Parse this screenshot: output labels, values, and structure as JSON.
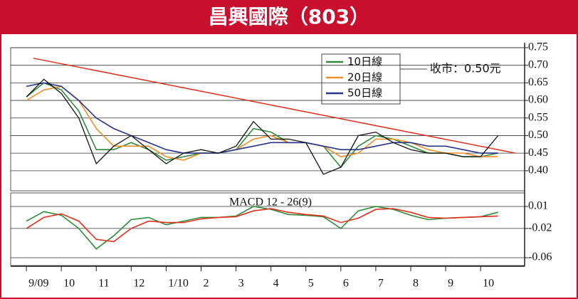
{
  "header": {
    "title": "昌興國際（803）"
  },
  "chart_data": [
    {
      "type": "line",
      "x": [
        0,
        0.5,
        1,
        1.5,
        2,
        2.5,
        3,
        3.5,
        4,
        4.5,
        5,
        5.5,
        6,
        6.5,
        7,
        7.5,
        8,
        8.5,
        9,
        9.5,
        10,
        10.5,
        11,
        11.5,
        12,
        12.5,
        13,
        13.5
      ],
      "values": [
        0.61,
        0.66,
        0.62,
        0.55,
        0.42,
        0.47,
        0.5,
        0.46,
        0.42,
        0.45,
        0.46,
        0.45,
        0.47,
        0.54,
        0.49,
        0.49,
        0.48,
        0.39,
        0.41,
        0.5,
        0.51,
        0.48,
        0.46,
        0.45,
        0.45,
        0.44,
        0.44,
        0.5
      ],
      "color": "#111111",
      "series": [
        {
          "name": "10日線",
          "color": "#2e8b3a",
          "values": [
            0.61,
            0.65,
            0.63,
            0.57,
            0.46,
            0.46,
            0.48,
            0.46,
            0.43,
            0.44,
            0.45,
            0.45,
            0.46,
            0.52,
            0.51,
            0.48,
            0.48,
            0.47,
            0.41,
            0.47,
            0.5,
            0.49,
            0.47,
            0.45,
            0.45,
            0.44,
            0.44,
            0.45
          ]
        },
        {
          "name": "20日線",
          "color": "#f0902a",
          "values": [
            0.6,
            0.63,
            0.64,
            0.6,
            0.52,
            0.47,
            0.47,
            0.47,
            0.44,
            0.43,
            0.45,
            0.45,
            0.46,
            0.49,
            0.5,
            0.48,
            0.48,
            0.47,
            0.44,
            0.45,
            0.49,
            0.49,
            0.48,
            0.46,
            0.45,
            0.45,
            0.44,
            0.44
          ]
        },
        {
          "name": "50日線",
          "color": "#28348a",
          "values": [
            0.64,
            0.65,
            0.64,
            0.6,
            0.55,
            0.52,
            0.5,
            0.48,
            0.46,
            0.45,
            0.45,
            0.45,
            0.46,
            0.47,
            0.48,
            0.48,
            0.48,
            0.47,
            0.46,
            0.46,
            0.47,
            0.48,
            0.48,
            0.47,
            0.47,
            0.46,
            0.45,
            0.45
          ]
        }
      ],
      "trendline": {
        "color": "#e0301e",
        "x": [
          0.2,
          14
        ],
        "values": [
          0.72,
          0.45
        ]
      },
      "annotation": "收市：0.50元",
      "xlim": [
        -0.45,
        14.26
      ],
      "ylim": [
        0.345,
        0.75
      ],
      "yticks": [
        0.75,
        {
          "value": 0.7,
          "label": "0.70"
        },
        0.65,
        {
          "value": 0.6,
          "label": "0.60"
        },
        0.55,
        {
          "value": 0.5,
          "label": "0.50"
        },
        0.45,
        {
          "value": 0.4,
          "label": "0.40"
        }
      ],
      "grid": true
    },
    {
      "type": "line",
      "title": "MACD 12 - 26(9)",
      "x": [
        0,
        0.5,
        1,
        1.5,
        2,
        2.5,
        3,
        3.5,
        4,
        4.5,
        5,
        5.5,
        6,
        6.5,
        7,
        7.5,
        8,
        8.5,
        9,
        9.5,
        10,
        10.5,
        11,
        11.5,
        12,
        12.5,
        13,
        13.5
      ],
      "series": [
        {
          "color": "#2e8b3a",
          "values": [
            -0.01,
            0.003,
            -0.002,
            -0.02,
            -0.048,
            -0.03,
            -0.008,
            -0.005,
            -0.015,
            -0.01,
            -0.005,
            -0.005,
            -0.003,
            0.01,
            0.006,
            -0.001,
            -0.002,
            -0.004,
            -0.02,
            0.004,
            0.01,
            0.006,
            -0.002,
            -0.008,
            -0.006,
            -0.005,
            -0.004,
            0.002
          ]
        },
        {
          "color": "#e0301e",
          "values": [
            -0.02,
            -0.005,
            0,
            -0.01,
            -0.035,
            -0.038,
            -0.02,
            -0.01,
            -0.012,
            -0.012,
            -0.007,
            -0.005,
            -0.004,
            0.004,
            0.007,
            0.002,
            -0.001,
            -0.003,
            -0.012,
            -0.006,
            0.006,
            0.007,
            0.002,
            -0.005,
            -0.006,
            -0.005,
            -0.004,
            -0.003
          ]
        }
      ],
      "xlim": [
        -0.45,
        14.26
      ],
      "ylim": [
        -0.07,
        0.028
      ],
      "yticks": [
        0.01,
        -0.02,
        -0.06
      ],
      "xticks": [
        {
          "value": 0,
          "label": "9/09"
        },
        {
          "value": 1,
          "label": "10"
        },
        {
          "value": 2,
          "label": "11"
        },
        {
          "value": 3,
          "label": "12"
        },
        {
          "value": 4,
          "label": "1/10"
        },
        {
          "value": 5,
          "label": "2"
        },
        {
          "value": 6,
          "label": "3"
        },
        {
          "value": 7,
          "label": "4"
        },
        {
          "value": 8,
          "label": "5"
        },
        {
          "value": 9,
          "label": "6"
        },
        {
          "value": 10,
          "label": "7"
        },
        {
          "value": 11,
          "label": "8"
        },
        {
          "value": 12,
          "label": "9"
        },
        {
          "value": 13,
          "label": "10"
        }
      ],
      "grid": true
    }
  ]
}
